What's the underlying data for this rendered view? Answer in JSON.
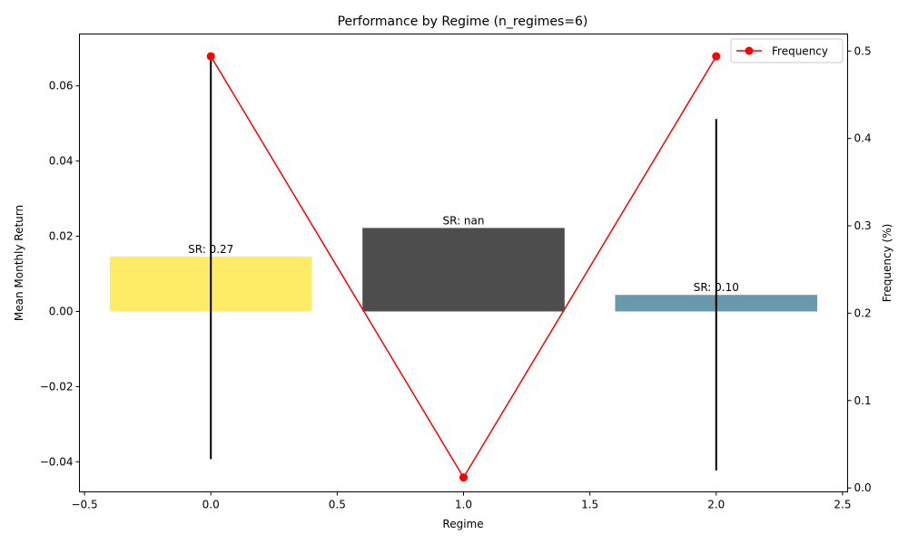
{
  "chart_data": {
    "type": "bar",
    "title": "Performance by Regime (n_regimes=6)",
    "xlabel": "Regime",
    "ylabel": "Mean Monthly Return",
    "y2label": "Frequency (%)",
    "xlim": [
      -0.52,
      2.52
    ],
    "ylim": [
      -0.048,
      0.0738
    ],
    "y2lim": [
      -0.0045,
      0.5195
    ],
    "x_ticks": [
      -0.5,
      0.0,
      0.5,
      1.0,
      1.5,
      2.0,
      2.5
    ],
    "x_tick_labels": [
      "−0.5",
      "0.0",
      "0.5",
      "1.0",
      "1.5",
      "2.0",
      "2.5"
    ],
    "y_ticks": [
      -0.04,
      -0.02,
      0.0,
      0.02,
      0.04,
      0.06
    ],
    "y_tick_labels": [
      "−0.04",
      "−0.02",
      "0.00",
      "0.02",
      "0.04",
      "0.06"
    ],
    "y2_ticks": [
      0.0,
      0.1,
      0.2,
      0.3,
      0.4,
      0.5
    ],
    "y2_tick_labels": [
      "0.0",
      "0.1",
      "0.2",
      "0.3",
      "0.4",
      "0.5"
    ],
    "bar_width": 0.8,
    "bars": [
      {
        "x": 0,
        "value": 0.0146,
        "err_low": -0.0393,
        "err_high": 0.0685,
        "color": "#ffec66",
        "label": "SR: 0.27"
      },
      {
        "x": 1,
        "value": 0.0222,
        "err_low": null,
        "err_high": null,
        "color": "#4d4d4d",
        "label": "SR: nan"
      },
      {
        "x": 2,
        "value": 0.0044,
        "err_low": -0.0423,
        "err_high": 0.0512,
        "color": "#6999ad",
        "label": "SR: 0.10"
      }
    ],
    "series": [
      {
        "name": "Frequency",
        "axis": "right",
        "color": "#ff0000",
        "x": [
          0,
          1,
          2
        ],
        "values": [
          0.494,
          0.012,
          0.494
        ]
      }
    ],
    "legend": {
      "position": "top-right",
      "entries": [
        "Frequency"
      ]
    },
    "grid": false
  }
}
